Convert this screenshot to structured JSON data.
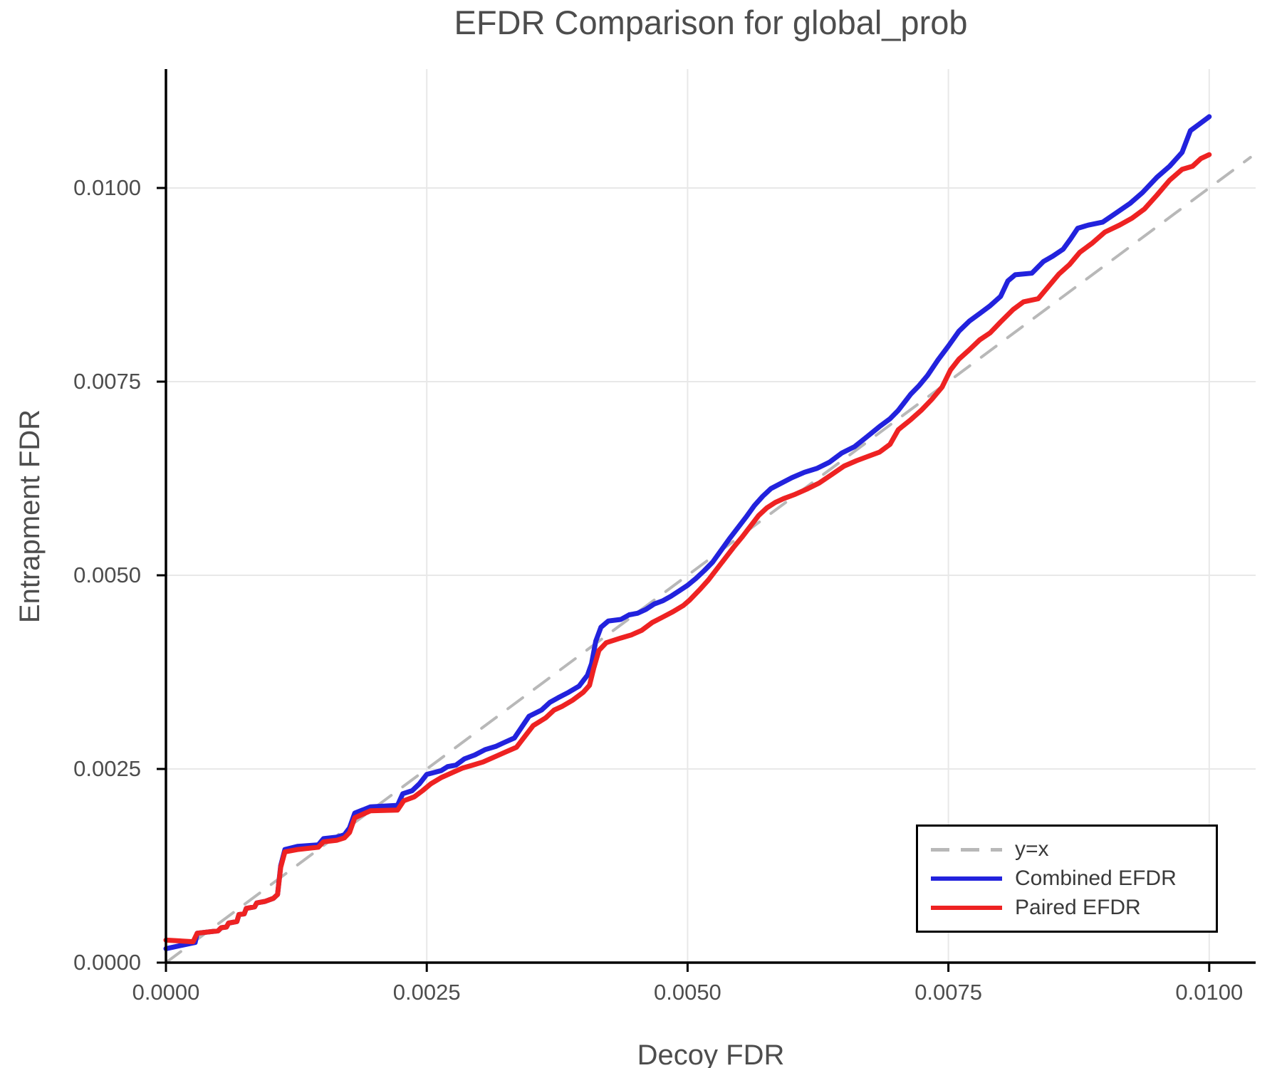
{
  "chart_data": {
    "type": "line",
    "title": "EFDR Comparison for global_prob",
    "xlabel": "Decoy FDR",
    "ylabel": "Entrapment FDR",
    "xlim": [
      0,
      0.010445
    ],
    "ylim": [
      0,
      0.011535
    ],
    "grid": true,
    "grid_color": "#e8e8e8",
    "spine_color": "#000000",
    "tick_text_color": "#4d4d4d",
    "x_ticks": [
      0.0,
      0.0025,
      0.005,
      0.0075,
      0.01
    ],
    "x_tick_labels": [
      "0.0000",
      "0.0025",
      "0.0050",
      "0.0075",
      "0.0100"
    ],
    "y_ticks": [
      0.0,
      0.0025,
      0.005,
      0.0075,
      0.01
    ],
    "y_tick_labels": [
      "0.0000",
      "0.0025",
      "0.0050",
      "0.0075",
      "0.0100"
    ],
    "legend_position": "lower right",
    "series": [
      {
        "name": "y=x",
        "type": "reference-line",
        "color": "#b8b8b8",
        "dashed": true,
        "width": 4,
        "points": [
          [
            0.0,
            0.0
          ],
          [
            0.010395,
            0.010395
          ]
        ]
      },
      {
        "name": "Combined EFDR",
        "type": "curve",
        "color": "#2222dd",
        "dashed": false,
        "width": 7,
        "points": [
          [
            0.0,
            0.00018
          ],
          [
            0.00028,
            0.00026
          ],
          [
            0.0003,
            0.00038
          ],
          [
            0.0005,
            0.00041
          ],
          [
            0.00053,
            0.00045
          ],
          [
            0.00058,
            0.00046
          ],
          [
            0.0006,
            0.00051
          ],
          [
            0.00068,
            0.00053
          ],
          [
            0.0007,
            0.00062
          ],
          [
            0.00075,
            0.00063
          ],
          [
            0.00077,
            0.0007
          ],
          [
            0.00085,
            0.00072
          ],
          [
            0.00087,
            0.00077
          ],
          [
            0.00095,
            0.00079
          ],
          [
            0.00103,
            0.00083
          ],
          [
            0.00107,
            0.00088
          ],
          [
            0.0011,
            0.00125
          ],
          [
            0.00114,
            0.00146
          ],
          [
            0.00126,
            0.0015
          ],
          [
            0.00146,
            0.00152
          ],
          [
            0.00151,
            0.0016
          ],
          [
            0.00164,
            0.00162
          ],
          [
            0.00171,
            0.00165
          ],
          [
            0.00176,
            0.00174
          ],
          [
            0.00181,
            0.00193
          ],
          [
            0.00196,
            0.00201
          ],
          [
            0.00222,
            0.00203
          ],
          [
            0.00227,
            0.00218
          ],
          [
            0.00236,
            0.00222
          ],
          [
            0.00243,
            0.00231
          ],
          [
            0.0025,
            0.00243
          ],
          [
            0.00256,
            0.00245
          ],
          [
            0.00264,
            0.00248
          ],
          [
            0.0027,
            0.00253
          ],
          [
            0.00278,
            0.00255
          ],
          [
            0.00286,
            0.00263
          ],
          [
            0.00296,
            0.00268
          ],
          [
            0.00306,
            0.00275
          ],
          [
            0.00316,
            0.00279
          ],
          [
            0.00324,
            0.00284
          ],
          [
            0.00334,
            0.0029
          ],
          [
            0.0034,
            0.00302
          ],
          [
            0.00348,
            0.00318
          ],
          [
            0.0036,
            0.00326
          ],
          [
            0.00368,
            0.00336
          ],
          [
            0.00376,
            0.00342
          ],
          [
            0.00386,
            0.00349
          ],
          [
            0.00396,
            0.00357
          ],
          [
            0.004,
            0.00364
          ],
          [
            0.00404,
            0.00371
          ],
          [
            0.00408,
            0.00386
          ],
          [
            0.00412,
            0.00415
          ],
          [
            0.00417,
            0.00433
          ],
          [
            0.00424,
            0.00441
          ],
          [
            0.00436,
            0.00443
          ],
          [
            0.00444,
            0.00449
          ],
          [
            0.00452,
            0.00451
          ],
          [
            0.0046,
            0.00456
          ],
          [
            0.00468,
            0.00463
          ],
          [
            0.00476,
            0.00467
          ],
          [
            0.00484,
            0.00473
          ],
          [
            0.00492,
            0.0048
          ],
          [
            0.005,
            0.00487
          ],
          [
            0.00508,
            0.00496
          ],
          [
            0.00516,
            0.00506
          ],
          [
            0.00524,
            0.00517
          ],
          [
            0.00532,
            0.00532
          ],
          [
            0.0054,
            0.00547
          ],
          [
            0.00548,
            0.00561
          ],
          [
            0.00556,
            0.00575
          ],
          [
            0.00564,
            0.0059
          ],
          [
            0.00572,
            0.00602
          ],
          [
            0.0058,
            0.00612
          ],
          [
            0.0059,
            0.00619
          ],
          [
            0.006,
            0.00626
          ],
          [
            0.00612,
            0.00633
          ],
          [
            0.00624,
            0.00638
          ],
          [
            0.00636,
            0.00646
          ],
          [
            0.00648,
            0.00658
          ],
          [
            0.0066,
            0.00666
          ],
          [
            0.00672,
            0.00679
          ],
          [
            0.00684,
            0.00692
          ],
          [
            0.00694,
            0.00702
          ],
          [
            0.00702,
            0.00713
          ],
          [
            0.00714,
            0.00734
          ],
          [
            0.00722,
            0.00745
          ],
          [
            0.0073,
            0.00758
          ],
          [
            0.0074,
            0.00778
          ],
          [
            0.0075,
            0.00796
          ],
          [
            0.0076,
            0.00815
          ],
          [
            0.0077,
            0.00828
          ],
          [
            0.0078,
            0.00838
          ],
          [
            0.0079,
            0.00848
          ],
          [
            0.008,
            0.0086
          ],
          [
            0.00807,
            0.0088
          ],
          [
            0.00814,
            0.00888
          ],
          [
            0.0083,
            0.0089
          ],
          [
            0.00841,
            0.00905
          ],
          [
            0.0085,
            0.00912
          ],
          [
            0.0086,
            0.00921
          ],
          [
            0.00867,
            0.00934
          ],
          [
            0.00874,
            0.00948
          ],
          [
            0.00884,
            0.00952
          ],
          [
            0.00898,
            0.00956
          ],
          [
            0.0091,
            0.00967
          ],
          [
            0.00924,
            0.0098
          ],
          [
            0.00936,
            0.00994
          ],
          [
            0.0095,
            0.01014
          ],
          [
            0.00962,
            0.01028
          ],
          [
            0.00974,
            0.01046
          ],
          [
            0.00982,
            0.01074
          ],
          [
            0.0099,
            0.01082
          ],
          [
            0.01,
            0.01092
          ]
        ]
      },
      {
        "name": "Paired EFDR",
        "type": "curve",
        "color": "#ee2222",
        "dashed": false,
        "width": 7,
        "points": [
          [
            0.0,
            0.00029
          ],
          [
            0.00026,
            0.00027
          ],
          [
            0.0003,
            0.00038
          ],
          [
            0.0005,
            0.00041
          ],
          [
            0.00053,
            0.00045
          ],
          [
            0.00058,
            0.00046
          ],
          [
            0.0006,
            0.00051
          ],
          [
            0.00068,
            0.00053
          ],
          [
            0.0007,
            0.00062
          ],
          [
            0.00075,
            0.00063
          ],
          [
            0.00077,
            0.0007
          ],
          [
            0.00085,
            0.00072
          ],
          [
            0.00087,
            0.00077
          ],
          [
            0.00095,
            0.00079
          ],
          [
            0.00103,
            0.00083
          ],
          [
            0.00107,
            0.00088
          ],
          [
            0.0011,
            0.00123
          ],
          [
            0.00114,
            0.00143
          ],
          [
            0.00126,
            0.00146
          ],
          [
            0.00146,
            0.00149
          ],
          [
            0.00151,
            0.00156
          ],
          [
            0.00164,
            0.00158
          ],
          [
            0.00171,
            0.00161
          ],
          [
            0.00176,
            0.00168
          ],
          [
            0.00181,
            0.00187
          ],
          [
            0.00196,
            0.00196
          ],
          [
            0.00222,
            0.00197
          ],
          [
            0.00228,
            0.00209
          ],
          [
            0.00238,
            0.00214
          ],
          [
            0.00246,
            0.00222
          ],
          [
            0.00254,
            0.00231
          ],
          [
            0.00264,
            0.00239
          ],
          [
            0.00274,
            0.00245
          ],
          [
            0.00284,
            0.00251
          ],
          [
            0.00294,
            0.00255
          ],
          [
            0.00304,
            0.00259
          ],
          [
            0.00314,
            0.00265
          ],
          [
            0.00324,
            0.00271
          ],
          [
            0.00336,
            0.00278
          ],
          [
            0.00344,
            0.00292
          ],
          [
            0.00352,
            0.00306
          ],
          [
            0.00364,
            0.00316
          ],
          [
            0.00372,
            0.00326
          ],
          [
            0.0038,
            0.00331
          ],
          [
            0.0039,
            0.00339
          ],
          [
            0.004,
            0.00349
          ],
          [
            0.00406,
            0.00358
          ],
          [
            0.0041,
            0.0038
          ],
          [
            0.00415,
            0.00403
          ],
          [
            0.00422,
            0.00413
          ],
          [
            0.00436,
            0.00419
          ],
          [
            0.00446,
            0.00423
          ],
          [
            0.00456,
            0.00429
          ],
          [
            0.00466,
            0.00439
          ],
          [
            0.00476,
            0.00446
          ],
          [
            0.00486,
            0.00453
          ],
          [
            0.00496,
            0.00461
          ],
          [
            0.00502,
            0.00468
          ],
          [
            0.00512,
            0.00482
          ],
          [
            0.0052,
            0.00494
          ],
          [
            0.00528,
            0.00508
          ],
          [
            0.00536,
            0.00522
          ],
          [
            0.00544,
            0.00536
          ],
          [
            0.00552,
            0.00549
          ],
          [
            0.0056,
            0.00563
          ],
          [
            0.00568,
            0.00577
          ],
          [
            0.00576,
            0.00587
          ],
          [
            0.00584,
            0.00594
          ],
          [
            0.00592,
            0.00599
          ],
          [
            0.00602,
            0.00604
          ],
          [
            0.00614,
            0.00611
          ],
          [
            0.00626,
            0.00619
          ],
          [
            0.00638,
            0.0063
          ],
          [
            0.0065,
            0.00641
          ],
          [
            0.00662,
            0.00648
          ],
          [
            0.00672,
            0.00653
          ],
          [
            0.00684,
            0.00659
          ],
          [
            0.00694,
            0.00669
          ],
          [
            0.00702,
            0.00688
          ],
          [
            0.00714,
            0.00701
          ],
          [
            0.00724,
            0.00713
          ],
          [
            0.00734,
            0.00727
          ],
          [
            0.00744,
            0.00743
          ],
          [
            0.00752,
            0.00765
          ],
          [
            0.0076,
            0.00779
          ],
          [
            0.0077,
            0.00791
          ],
          [
            0.0078,
            0.00804
          ],
          [
            0.0079,
            0.00813
          ],
          [
            0.008,
            0.00827
          ],
          [
            0.00812,
            0.00843
          ],
          [
            0.00822,
            0.00853
          ],
          [
            0.00836,
            0.00857
          ],
          [
            0.00846,
            0.00873
          ],
          [
            0.00856,
            0.00889
          ],
          [
            0.00866,
            0.00901
          ],
          [
            0.00876,
            0.00917
          ],
          [
            0.00888,
            0.00929
          ],
          [
            0.009,
            0.00943
          ],
          [
            0.00914,
            0.00952
          ],
          [
            0.00926,
            0.00961
          ],
          [
            0.00938,
            0.00973
          ],
          [
            0.0095,
            0.00991
          ],
          [
            0.00962,
            0.0101
          ],
          [
            0.00974,
            0.01024
          ],
          [
            0.00984,
            0.01028
          ],
          [
            0.00992,
            0.01038
          ],
          [
            0.01,
            0.01043
          ]
        ]
      }
    ]
  }
}
